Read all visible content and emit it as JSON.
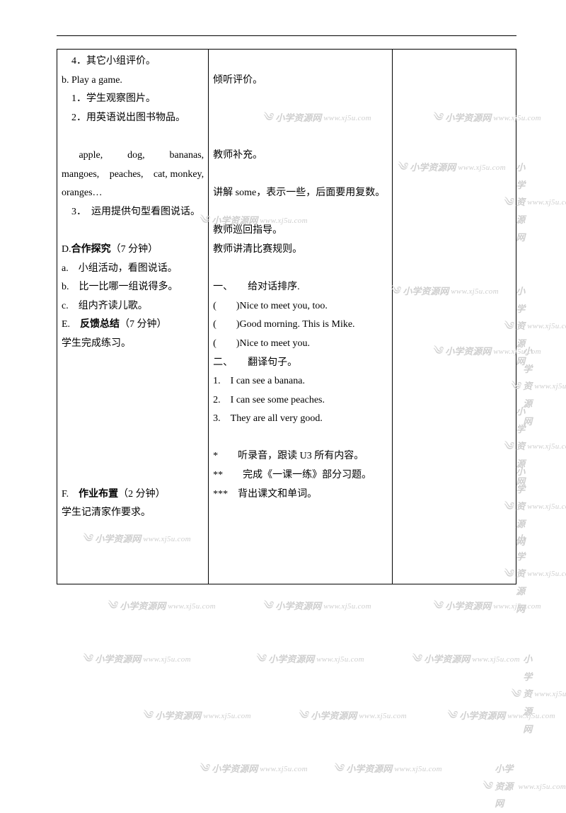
{
  "col1": {
    "line1": "　4．其它小组评价。",
    "line2": "b. Play a game.",
    "line3": "　1．学生观察图片。",
    "line4": "　2．用英语说出图书物品。",
    "line5": "　apple,　dog,　bananas, mangoes,　peaches,　cat, monkey, oranges…",
    "line6": "　3．　运用提供句型看图说话。",
    "sectionD_label": "D.",
    "sectionD_title": "合作探究",
    "sectionD_time": "（7 分钟）",
    "d1": "a.　小组活动，看图说话。",
    "d2": "b.　比一比哪一组说得多。",
    "d3": "c.　组内齐读儿歌。",
    "sectionE_label": "E.　",
    "sectionE_title": "反馈总结",
    "sectionE_time": "（7 分钟）",
    "e1": "学生完成练习。",
    "sectionF_label": "F.　",
    "sectionF_title": "作业布置",
    "sectionF_time": "（2 分钟）",
    "f1": "学生记清家作要求。"
  },
  "col2": {
    "c2a": "倾听评价。",
    "c2b": "教师补充。",
    "c2c": "讲解 some，表示一些，后面要用复数。",
    "c2d": "教师巡回指导。",
    "c2e": "教师讲清比赛规则。",
    "ex1_title": "一、　　给对话排序.",
    "ex1_1": "(　　)Nice to meet you, too.",
    "ex1_2": "(　　)Good  morning.  This  is Mike.",
    "ex1_3": "(　　)Nice to meet you.",
    "ex2_title": "二、　　翻译句子。",
    "ex2_1": "1.　I can see a banana.",
    "ex2_2": "2.　I can see some peaches.",
    "ex2_3": "3.　They are all very good.",
    "hw1": "*　　听录音，跟读 U3 所有内容。",
    "hw2": "**　　完成《一课一练》部分习题。",
    "hw3": "***　背出课文和单词。"
  },
  "watermark": {
    "brand": "小学资源网",
    "url": "www.xj5u.com"
  }
}
